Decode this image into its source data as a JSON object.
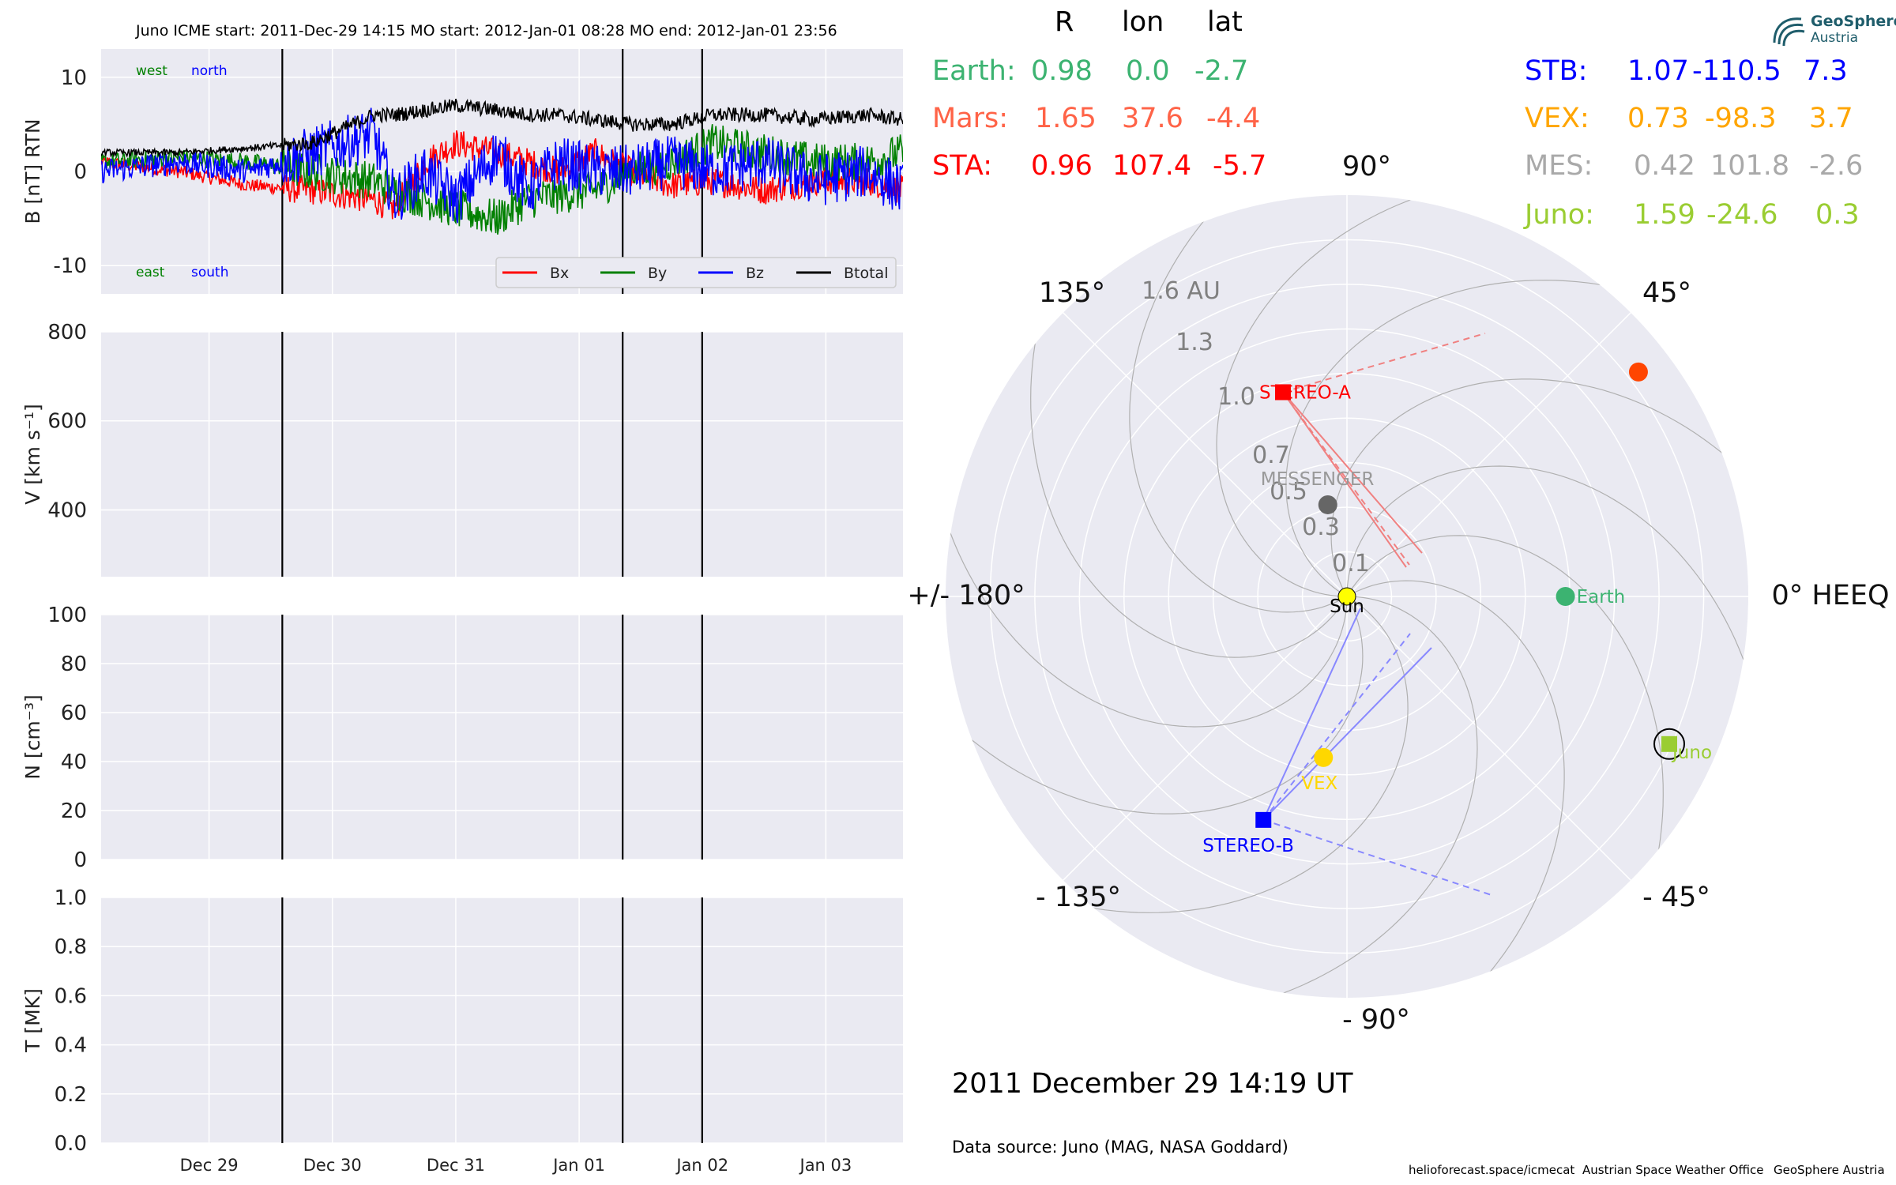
{
  "plot_title": "Juno    ICME start: 2011-Dec-29 14:15   MO start: 2012-Jan-01 08:28   MO end: 2012-Jan-01 23:56",
  "logo": {
    "name": "GeoSphere",
    "sub": "Austria"
  },
  "table": {
    "headers": [
      "R",
      "lon",
      "lat"
    ],
    "left_rows": [
      {
        "label": "Earth:",
        "r": "0.98",
        "lon": "0.0",
        "lat": "-2.7",
        "color": "#3cb371"
      },
      {
        "label": "Mars:",
        "r": "1.65",
        "lon": "37.6",
        "lat": "-4.4",
        "color": "#ff6347"
      },
      {
        "label": "STA:",
        "r": "0.96",
        "lon": "107.4",
        "lat": "-5.7",
        "color": "#ff0000"
      }
    ],
    "right_rows": [
      {
        "label": "STB:",
        "r": "1.07",
        "lon": "-110.5",
        "lat": "7.3",
        "color": "#0000ff"
      },
      {
        "label": "VEX:",
        "r": "0.73",
        "lon": "-98.3",
        "lat": "3.7",
        "color": "#ffa500"
      },
      {
        "label": "MES:",
        "r": "0.42",
        "lon": "101.8",
        "lat": "-2.6",
        "color": "#a9a9a9"
      },
      {
        "label": "Juno:",
        "r": "1.59",
        "lon": "-24.6",
        "lat": "0.3",
        "color": "#9acd32"
      }
    ]
  },
  "date_text": "2011 December 29  14:19 UT",
  "data_source": "Data source: Juno (MAG, NASA Goddard)",
  "footer": {
    "url": "helioforecast.space/icmecat",
    "office": "Austrian Space Weather Office",
    "org": "GeoSphere Austria"
  },
  "chart_data": [
    {
      "type": "line",
      "panel": "magnetic_field",
      "ylabel": "B [nT] RTN",
      "ylim": [
        -13,
        13
      ],
      "yticks": [
        -10,
        0,
        10
      ],
      "xticks": [
        "Dec 29",
        "Dec 30",
        "Dec 31",
        "Jan 01",
        "Jan 02",
        "Jan 03"
      ],
      "x_start": "2011-12-28 03:00",
      "x_end": "2012-01-03 15:00",
      "vlines": [
        "2011-12-29 14:15",
        "2012-01-01 08:28",
        "2012-01-01 23:56"
      ],
      "corner_labels": {
        "top_left": "west",
        "top_right": "north",
        "bottom_left": "east",
        "bottom_right": "south"
      },
      "legend": "lower right",
      "series": [
        {
          "name": "Bx",
          "color": "#ff0000",
          "x": [
            "2011-12-28 03:00",
            "2011-12-28 18:00",
            "2011-12-29 08:00",
            "2011-12-29 20:00",
            "2011-12-30 08:00",
            "2011-12-30 12:00",
            "2011-12-30 18:00",
            "2011-12-31 00:00",
            "2011-12-31 08:00",
            "2011-12-31 14:00",
            "2011-12-31 20:00",
            "2012-01-01 03:00",
            "2012-01-01 10:00",
            "2012-01-01 18:00",
            "2012-01-02 02:00",
            "2012-01-02 12:00",
            "2012-01-02 22:00",
            "2012-01-03 08:00",
            "2012-01-03 15:00"
          ],
          "y": [
            1,
            0,
            -1.5,
            -2,
            -3,
            -4,
            1,
            3,
            2,
            1,
            0,
            2,
            0,
            -1.5,
            -1,
            -2,
            -1,
            -1,
            -2
          ]
        },
        {
          "name": "By",
          "color": "#008000",
          "x": [
            "2011-12-28 03:00",
            "2011-12-28 18:00",
            "2011-12-29 08:00",
            "2011-12-29 20:00",
            "2011-12-30 08:00",
            "2011-12-30 12:00",
            "2011-12-30 18:00",
            "2011-12-31 00:00",
            "2011-12-31 08:00",
            "2011-12-31 14:00",
            "2011-12-31 20:00",
            "2012-01-01 03:00",
            "2012-01-01 10:00",
            "2012-01-01 18:00",
            "2012-01-02 02:00",
            "2012-01-02 12:00",
            "2012-01-02 22:00",
            "2012-01-03 08:00",
            "2012-01-03 15:00"
          ],
          "y": [
            1,
            1.5,
            1,
            0,
            -1,
            -2,
            -3,
            -4,
            -5,
            -3,
            -2.5,
            -2,
            0,
            1,
            3,
            2,
            1,
            1,
            2
          ]
        },
        {
          "name": "Bz",
          "color": "#0000ff",
          "x": [
            "2011-12-28 03:00",
            "2011-12-28 18:00",
            "2011-12-29 08:00",
            "2011-12-29 20:00",
            "2011-12-30 08:00",
            "2011-12-30 12:00",
            "2011-12-30 18:00",
            "2011-12-31 00:00",
            "2011-12-31 08:00",
            "2011-12-31 14:00",
            "2011-12-31 20:00",
            "2012-01-01 03:00",
            "2012-01-01 10:00",
            "2012-01-01 18:00",
            "2012-01-02 02:00",
            "2012-01-02 12:00",
            "2012-01-02 22:00",
            "2012-01-03 08:00",
            "2012-01-03 15:00"
          ],
          "y": [
            0,
            1,
            0,
            2,
            4,
            -3,
            0,
            -3,
            2,
            -2,
            1,
            0,
            0,
            1,
            0,
            1,
            -1,
            0,
            -2
          ]
        },
        {
          "name": "Btotal",
          "color": "#000000",
          "x": [
            "2011-12-28 03:00",
            "2011-12-28 18:00",
            "2011-12-29 08:00",
            "2011-12-29 20:00",
            "2011-12-30 08:00",
            "2011-12-30 12:00",
            "2011-12-30 18:00",
            "2011-12-31 00:00",
            "2011-12-31 08:00",
            "2011-12-31 14:00",
            "2011-12-31 20:00",
            "2012-01-01 03:00",
            "2012-01-01 10:00",
            "2012-01-01 18:00",
            "2012-01-02 02:00",
            "2012-01-02 12:00",
            "2012-01-02 22:00",
            "2012-01-03 08:00",
            "2012-01-03 15:00"
          ],
          "y": [
            2,
            2,
            2.5,
            3,
            6,
            6,
            6.5,
            7,
            6.5,
            6,
            6,
            5.5,
            5,
            5,
            6,
            6,
            5.5,
            6,
            5.5
          ]
        }
      ]
    },
    {
      "type": "line",
      "panel": "speed",
      "ylabel": "V [km s⁻¹]",
      "ylim": [
        250,
        800
      ],
      "yticks": [
        400,
        600,
        800
      ],
      "series": []
    },
    {
      "type": "line",
      "panel": "density",
      "ylabel": "N [cm⁻³]",
      "ylim": [
        0,
        100
      ],
      "yticks": [
        0,
        20,
        40,
        60,
        80,
        100
      ],
      "series": []
    },
    {
      "type": "line",
      "panel": "temperature",
      "ylabel": "T [MK]",
      "ylim": [
        0,
        1.0
      ],
      "yticks": [
        "0.0",
        "0.2",
        "0.4",
        "0.6",
        "0.8",
        "1.0"
      ],
      "series": []
    },
    {
      "type": "scatter",
      "panel": "polar_heeq",
      "coordinates": "polar (R in AU, lon in deg HEEQ)",
      "rmax": 1.8,
      "angle_labels": [
        "0° HEEQ",
        "45°",
        "90°",
        "135°",
        "+/- 180°",
        "- 135°",
        "- 90°",
        "- 45°"
      ],
      "radial_labels": [
        "0.1",
        "0.3",
        "0.5",
        "0.7",
        "1.0",
        "1.3",
        "1.6 AU"
      ],
      "bodies": [
        {
          "name": "Sun",
          "r": 0,
          "lon": 0,
          "color": "#ffff00",
          "marker": "circle"
        },
        {
          "name": "Earth",
          "r": 0.98,
          "lon": 0.0,
          "color": "#3cb371",
          "marker": "circle"
        },
        {
          "name": "",
          "r": 1.65,
          "lon": 37.6,
          "color": "#ff4500",
          "marker": "circle"
        },
        {
          "name": "STEREO-A",
          "r": 0.96,
          "lon": 107.4,
          "color": "#ff0000",
          "marker": "square"
        },
        {
          "name": "MESSENGER",
          "r": 0.42,
          "lon": 101.8,
          "color": "#666666",
          "marker": "circle"
        },
        {
          "name": "VEX",
          "r": 0.73,
          "lon": -98.3,
          "color": "#ffd700",
          "marker": "circle"
        },
        {
          "name": "STEREO-B",
          "r": 1.07,
          "lon": -110.5,
          "color": "#0000ff",
          "marker": "square"
        },
        {
          "name": "Juno",
          "r": 1.59,
          "lon": -24.6,
          "color": "#9acd32",
          "marker": "square"
        }
      ]
    }
  ]
}
